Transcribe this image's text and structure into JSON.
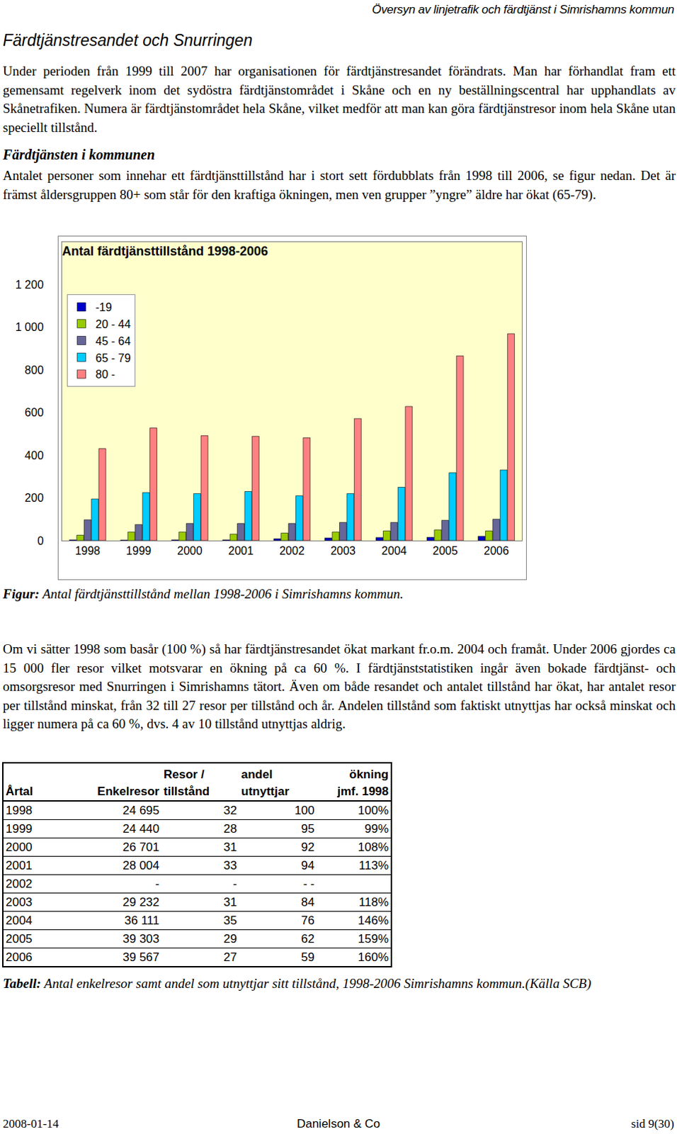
{
  "header": "Översyn av linjetrafik och färdtjänst i Simrishamns kommun",
  "title": "Färdtjänstresandet och Snurringen",
  "paragraph_1": "Under perioden från 1999 till 2007 har organisationen för färdtjänstresandet förändrats. Man har förhandlat fram ett gemensamt regelverk inom det sydöstra färdtjänstområdet i Skåne och en ny beställningscentral har upphandlats av Skånetrafiken. Numera är färdtjänstområdet hela Skåne, vilket medför att man kan göra färdtjänstresor inom hela Skåne utan speciellt tillstånd.",
  "subheading": "Färdtjänsten i kommunen",
  "paragraph_2": "Antalet personer som innehar ett färdtjänsttillstånd har i stort sett fördubblats från 1998 till 2006, se figur nedan. Det är främst åldersgruppen 80+ som står för den kraftiga ökningen, men ven grupper ”yngre” äldre har ökat (65-79).",
  "chart_data": {
    "type": "bar",
    "title": "Antal färdtjänsttillstånd 1998-2006",
    "categories": [
      "1998",
      "1999",
      "2000",
      "2001",
      "2002",
      "2003",
      "2004",
      "2005",
      "2006"
    ],
    "series": [
      {
        "name": "-19",
        "color": "#0000cc",
        "values": [
          3,
          2,
          3,
          3,
          8,
          12,
          14,
          15,
          20
        ]
      },
      {
        "name": "20 - 44",
        "color": "#99cc00",
        "values": [
          25,
          40,
          40,
          30,
          35,
          40,
          45,
          50,
          45
        ]
      },
      {
        "name": "45 - 64",
        "color": "#666699",
        "values": [
          97,
          75,
          80,
          80,
          80,
          85,
          85,
          95,
          100
        ]
      },
      {
        "name": "65 - 79",
        "color": "#00ccff",
        "values": [
          195,
          225,
          220,
          230,
          210,
          220,
          250,
          318,
          331
        ]
      },
      {
        "name": "80 -",
        "color": "#ff8080",
        "values": [
          431,
          528,
          492,
          489,
          482,
          572,
          629,
          866,
          970
        ]
      }
    ],
    "ylim": [
      0,
      1400
    ],
    "yticks": [
      0,
      200,
      400,
      600,
      800,
      {
        "value": 1000,
        "label": "1 000"
      },
      {
        "value": 1200,
        "label": "1 200"
      }
    ],
    "grid": false,
    "legend": "upper left"
  },
  "figure_caption": {
    "label": "Figur:",
    "text": "Antal färdtjänsttillstånd mellan 1998-2006 i Simrishamns kommun."
  },
  "paragraph_3": "Om vi sätter 1998 som basår (100 %) så har färdtjänstresandet ökat markant fr.o.m. 2004 och framåt. Under 2006 gjordes ca 15 000 fler resor vilket motsvarar en ökning på ca 60 %. I färdtjänststatistiken ingår även bokade färdtjänst- och omsorgsresor med Snurringen i Simrishamns tätort. Även om både resandet och antalet tillstånd har ökat, har antalet resor per tillstånd minskat, från 32 till 27 resor per tillstånd och år. Andelen tillstånd som faktiskt utnyttjas har också minskat och ligger numera på ca 60 %, dvs. 4 av 10 tillstånd utnyttjas aldrig.",
  "table": {
    "header": [
      [
        "Årtal"
      ],
      [
        "Enkelresor"
      ],
      [
        "Resor /",
        "tillstånd"
      ],
      [
        "andel",
        "utnyttjar"
      ],
      [
        "ökning",
        "jmf. 1998"
      ]
    ],
    "rows": [
      [
        "1998",
        "24 695",
        "32",
        "100",
        "100%"
      ],
      [
        "1999",
        "24 440",
        "28",
        "95",
        "99%"
      ],
      [
        "2000",
        "26 701",
        "31",
        "92",
        "108%"
      ],
      [
        "2001",
        "28 004",
        "33",
        "94",
        "113%"
      ],
      [
        "2002",
        "-",
        "-",
        "- -",
        null
      ],
      [
        "2003",
        "29 232",
        "31",
        "84",
        "118%"
      ],
      [
        "2004",
        "36 111",
        "35",
        "76",
        "146%"
      ],
      [
        "2005",
        "39 303",
        "29",
        "62",
        "159%"
      ],
      [
        "2006",
        "39 567",
        "27",
        "59",
        "160%"
      ]
    ]
  },
  "table_caption": {
    "label": "Tabell:",
    "text": "Antal enkelresor samt andel som utnyttjar sitt tillstånd, 1998-2006 Simrishamns kommun.(Källa SCB)"
  },
  "footer": {
    "date": "2008-01-14",
    "author": "Danielson & Co",
    "page": "sid 9(30)"
  }
}
